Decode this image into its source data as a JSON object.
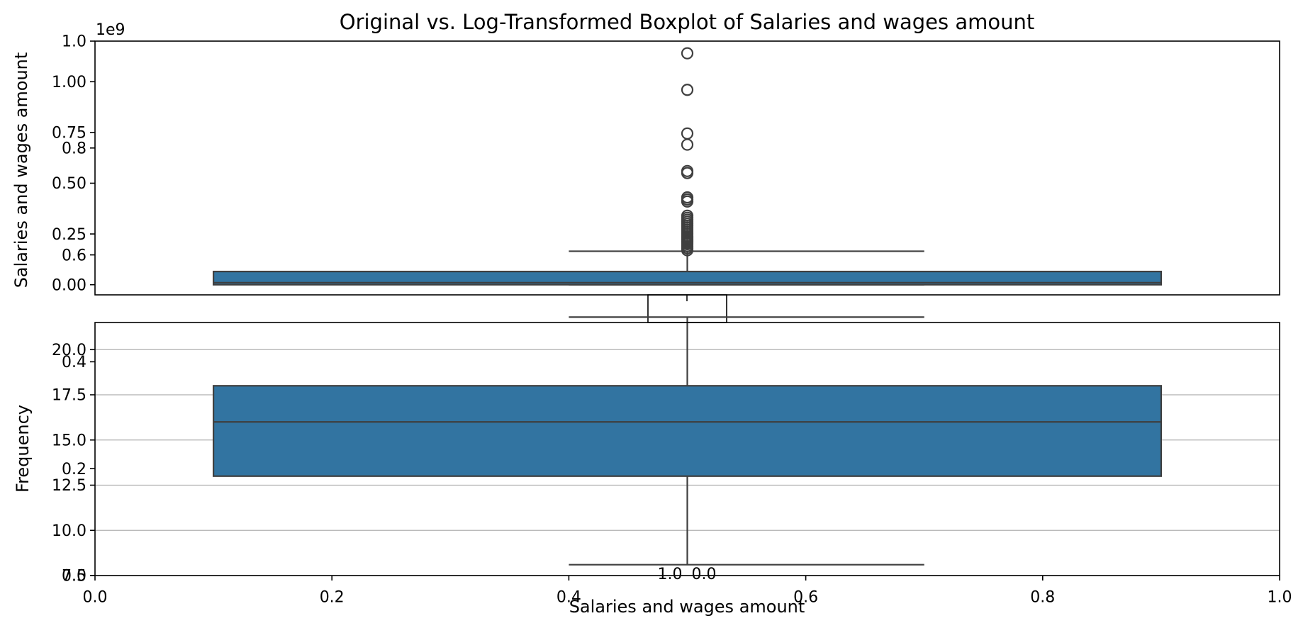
{
  "chart_data": {
    "type": "box",
    "title": "Original vs. Log-Transformed Boxplot of Salaries and wages amount",
    "outer_axes": {
      "xlabel": "Salaries and wages amount",
      "ylabel": "",
      "xlim": [
        0.0,
        1.0
      ],
      "ylim": [
        0.0,
        1.0
      ],
      "xticks": [
        "0.0",
        "0.2",
        "0.4",
        "0.6",
        "0.8",
        "1.0"
      ],
      "yticks": [
        "0.0",
        "0.2",
        "0.4",
        "0.6",
        "0.8",
        "1.0"
      ]
    },
    "inset_axes": {
      "xlim": [
        0.0,
        1.0
      ],
      "xticks": [
        "0.0",
        "0.2",
        "0.4",
        "0.6",
        "0.8",
        "1.0"
      ]
    },
    "boxplots": [
      {
        "name": "original",
        "ylabel": "Salaries and wages amount",
        "offset_text": "1e9",
        "ylim": [
          -0.05,
          1.2
        ],
        "yticks": [
          0.0,
          0.25,
          0.5,
          0.75,
          1.0
        ],
        "ytick_labels": [
          "0.00",
          "0.25",
          "0.50",
          "0.75",
          "1.00"
        ],
        "grid": false,
        "box_x": [
          0.1,
          0.9
        ],
        "cap_x": [
          0.4,
          0.7
        ],
        "center_x": 0.5,
        "whisker_low": 0.0,
        "q1": 0.0,
        "median": 0.01,
        "q3": 0.065,
        "whisker_high": 0.165,
        "fliers": [
          1.14,
          0.96,
          0.745,
          0.69,
          0.56,
          0.55,
          0.43,
          0.42,
          0.41,
          0.34,
          0.33,
          0.32,
          0.31,
          0.3,
          0.29,
          0.28,
          0.27,
          0.26,
          0.25,
          0.24,
          0.235,
          0.23,
          0.225,
          0.22,
          0.215,
          0.21,
          0.205,
          0.2,
          0.19,
          0.18,
          0.17
        ]
      },
      {
        "name": "log-transformed",
        "ylabel": "Frequency",
        "ylim": [
          7.5,
          21.5
        ],
        "yticks": [
          7.5,
          10.0,
          12.5,
          15.0,
          17.5,
          20.0
        ],
        "ytick_labels": [
          "7.5",
          "10.0",
          "12.5",
          "15.0",
          "17.5",
          "20.0"
        ],
        "grid": true,
        "box_x": [
          0.1,
          0.9
        ],
        "cap_x": [
          0.4,
          0.7
        ],
        "center_x": 0.5,
        "whisker_low": 8.1,
        "q1": 13.0,
        "median": 16.0,
        "q3": 18.0,
        "whisker_high": 21.8,
        "fliers": []
      }
    ]
  }
}
